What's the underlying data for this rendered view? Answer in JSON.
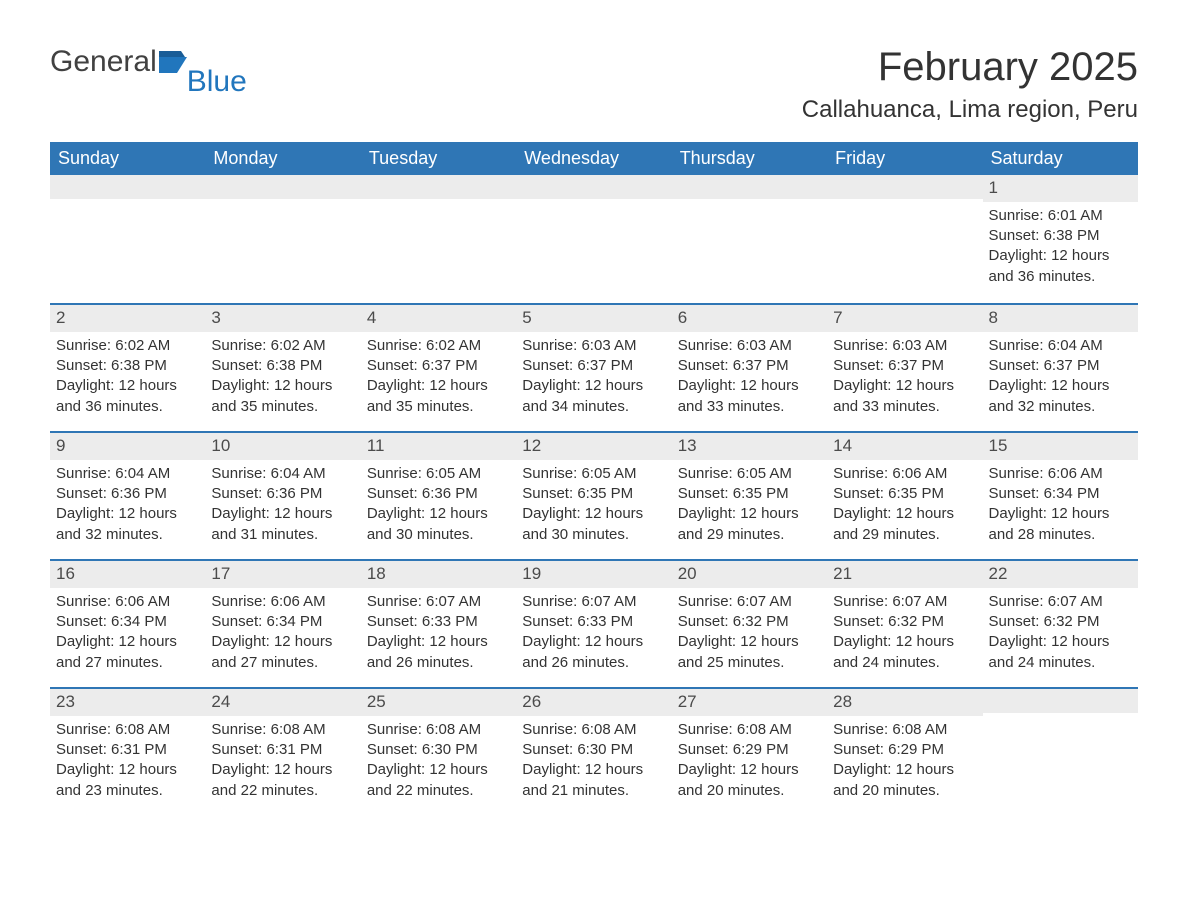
{
  "brand": {
    "part1": "General",
    "part2": "Blue",
    "color1": "#414141",
    "color2": "#2176bd"
  },
  "title": "February 2025",
  "location": "Callahuanca, Lima region, Peru",
  "colors": {
    "header_bg": "#2f76b5",
    "header_text": "#ffffff",
    "daynum_bg": "#ececec",
    "rule": "#2f76b5",
    "body_text": "#333333",
    "page_bg": "#ffffff"
  },
  "day_names": [
    "Sunday",
    "Monday",
    "Tuesday",
    "Wednesday",
    "Thursday",
    "Friday",
    "Saturday"
  ],
  "first_weekday_index": 6,
  "days": [
    {
      "n": 1,
      "sunrise": "6:01 AM",
      "sunset": "6:38 PM",
      "daylight": "12 hours and 36 minutes."
    },
    {
      "n": 2,
      "sunrise": "6:02 AM",
      "sunset": "6:38 PM",
      "daylight": "12 hours and 36 minutes."
    },
    {
      "n": 3,
      "sunrise": "6:02 AM",
      "sunset": "6:38 PM",
      "daylight": "12 hours and 35 minutes."
    },
    {
      "n": 4,
      "sunrise": "6:02 AM",
      "sunset": "6:37 PM",
      "daylight": "12 hours and 35 minutes."
    },
    {
      "n": 5,
      "sunrise": "6:03 AM",
      "sunset": "6:37 PM",
      "daylight": "12 hours and 34 minutes."
    },
    {
      "n": 6,
      "sunrise": "6:03 AM",
      "sunset": "6:37 PM",
      "daylight": "12 hours and 33 minutes."
    },
    {
      "n": 7,
      "sunrise": "6:03 AM",
      "sunset": "6:37 PM",
      "daylight": "12 hours and 33 minutes."
    },
    {
      "n": 8,
      "sunrise": "6:04 AM",
      "sunset": "6:37 PM",
      "daylight": "12 hours and 32 minutes."
    },
    {
      "n": 9,
      "sunrise": "6:04 AM",
      "sunset": "6:36 PM",
      "daylight": "12 hours and 32 minutes."
    },
    {
      "n": 10,
      "sunrise": "6:04 AM",
      "sunset": "6:36 PM",
      "daylight": "12 hours and 31 minutes."
    },
    {
      "n": 11,
      "sunrise": "6:05 AM",
      "sunset": "6:36 PM",
      "daylight": "12 hours and 30 minutes."
    },
    {
      "n": 12,
      "sunrise": "6:05 AM",
      "sunset": "6:35 PM",
      "daylight": "12 hours and 30 minutes."
    },
    {
      "n": 13,
      "sunrise": "6:05 AM",
      "sunset": "6:35 PM",
      "daylight": "12 hours and 29 minutes."
    },
    {
      "n": 14,
      "sunrise": "6:06 AM",
      "sunset": "6:35 PM",
      "daylight": "12 hours and 29 minutes."
    },
    {
      "n": 15,
      "sunrise": "6:06 AM",
      "sunset": "6:34 PM",
      "daylight": "12 hours and 28 minutes."
    },
    {
      "n": 16,
      "sunrise": "6:06 AM",
      "sunset": "6:34 PM",
      "daylight": "12 hours and 27 minutes."
    },
    {
      "n": 17,
      "sunrise": "6:06 AM",
      "sunset": "6:34 PM",
      "daylight": "12 hours and 27 minutes."
    },
    {
      "n": 18,
      "sunrise": "6:07 AM",
      "sunset": "6:33 PM",
      "daylight": "12 hours and 26 minutes."
    },
    {
      "n": 19,
      "sunrise": "6:07 AM",
      "sunset": "6:33 PM",
      "daylight": "12 hours and 26 minutes."
    },
    {
      "n": 20,
      "sunrise": "6:07 AM",
      "sunset": "6:32 PM",
      "daylight": "12 hours and 25 minutes."
    },
    {
      "n": 21,
      "sunrise": "6:07 AM",
      "sunset": "6:32 PM",
      "daylight": "12 hours and 24 minutes."
    },
    {
      "n": 22,
      "sunrise": "6:07 AM",
      "sunset": "6:32 PM",
      "daylight": "12 hours and 24 minutes."
    },
    {
      "n": 23,
      "sunrise": "6:08 AM",
      "sunset": "6:31 PM",
      "daylight": "12 hours and 23 minutes."
    },
    {
      "n": 24,
      "sunrise": "6:08 AM",
      "sunset": "6:31 PM",
      "daylight": "12 hours and 22 minutes."
    },
    {
      "n": 25,
      "sunrise": "6:08 AM",
      "sunset": "6:30 PM",
      "daylight": "12 hours and 22 minutes."
    },
    {
      "n": 26,
      "sunrise": "6:08 AM",
      "sunset": "6:30 PM",
      "daylight": "12 hours and 21 minutes."
    },
    {
      "n": 27,
      "sunrise": "6:08 AM",
      "sunset": "6:29 PM",
      "daylight": "12 hours and 20 minutes."
    },
    {
      "n": 28,
      "sunrise": "6:08 AM",
      "sunset": "6:29 PM",
      "daylight": "12 hours and 20 minutes."
    }
  ],
  "labels": {
    "sunrise": "Sunrise:",
    "sunset": "Sunset:",
    "daylight": "Daylight:"
  }
}
